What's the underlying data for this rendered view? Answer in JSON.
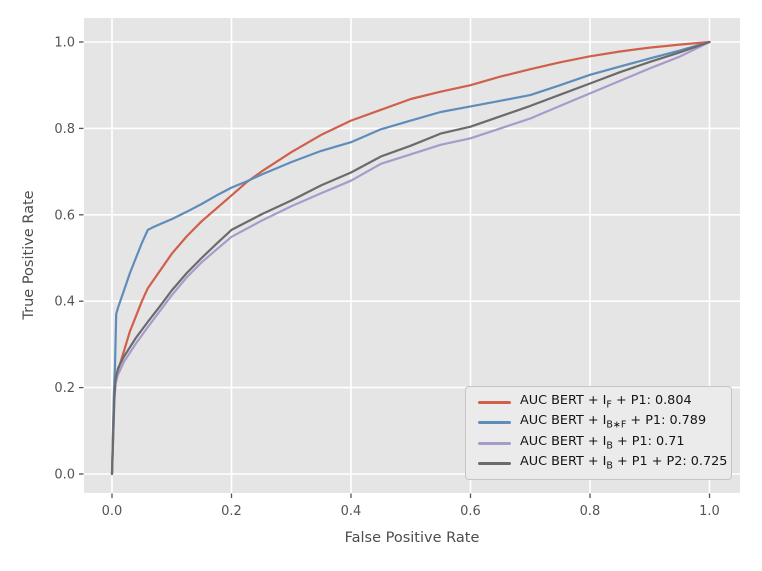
{
  "figure": {
    "background": "#ffffff",
    "plot_background": "#e5e5e5",
    "grid_color": "#ffffff",
    "tick_color": "#555555",
    "tick_label_color": "#555555",
    "axis_label_color": "#4d4d4d",
    "legend_background": "#ebebeb",
    "legend_border": "#c5c5c5"
  },
  "chart_data": {
    "type": "line",
    "title": "",
    "xlabel": "False Positive Rate",
    "ylabel": "True Positive Rate",
    "xlim": [
      -0.047,
      1.051
    ],
    "ylim": [
      -0.044,
      1.056
    ],
    "xticks": [
      0.0,
      0.2,
      0.4,
      0.6,
      0.8,
      1.0
    ],
    "yticks": [
      0.0,
      0.2,
      0.4,
      0.6,
      0.8,
      1.0
    ],
    "xtick_labels": [
      "0.0",
      "0.2",
      "0.4",
      "0.6",
      "0.8",
      "1.0"
    ],
    "ytick_labels": [
      "0.0",
      "0.2",
      "0.4",
      "0.6",
      "0.8",
      "1.0"
    ],
    "grid": true,
    "legend_position": "lower right",
    "series": [
      {
        "name": "BERT + IF + P1",
        "auc": 0.804,
        "color": "#d05f4c",
        "label_parts": [
          {
            "text": "AUC BERT + I"
          },
          {
            "sub": "F"
          },
          {
            "text": " + P1: 0.804"
          }
        ],
        "points": [
          [
            0,
            0
          ],
          [
            0.003,
            0.16
          ],
          [
            0.005,
            0.22
          ],
          [
            0.01,
            0.24
          ],
          [
            0.02,
            0.285
          ],
          [
            0.03,
            0.33
          ],
          [
            0.04,
            0.365
          ],
          [
            0.05,
            0.4
          ],
          [
            0.06,
            0.43
          ],
          [
            0.08,
            0.47
          ],
          [
            0.1,
            0.51
          ],
          [
            0.125,
            0.55
          ],
          [
            0.15,
            0.585
          ],
          [
            0.175,
            0.615
          ],
          [
            0.2,
            0.645
          ],
          [
            0.225,
            0.675
          ],
          [
            0.25,
            0.7
          ],
          [
            0.3,
            0.745
          ],
          [
            0.35,
            0.785
          ],
          [
            0.4,
            0.818
          ],
          [
            0.45,
            0.843
          ],
          [
            0.5,
            0.868
          ],
          [
            0.55,
            0.885
          ],
          [
            0.6,
            0.9
          ],
          [
            0.65,
            0.92
          ],
          [
            0.7,
            0.937
          ],
          [
            0.75,
            0.953
          ],
          [
            0.8,
            0.967
          ],
          [
            0.85,
            0.978
          ],
          [
            0.9,
            0.987
          ],
          [
            0.95,
            0.994
          ],
          [
            1,
            1
          ]
        ]
      },
      {
        "name": "BERT + IB*F + P1",
        "auc": 0.789,
        "color": "#5f8db9",
        "label_parts": [
          {
            "text": "AUC BERT + I"
          },
          {
            "sub": "B∗F"
          },
          {
            "text": " + P1: 0.789"
          }
        ],
        "points": [
          [
            0,
            0
          ],
          [
            0.003,
            0.18
          ],
          [
            0.005,
            0.25
          ],
          [
            0.007,
            0.37
          ],
          [
            0.01,
            0.385
          ],
          [
            0.02,
            0.425
          ],
          [
            0.03,
            0.465
          ],
          [
            0.04,
            0.5
          ],
          [
            0.05,
            0.535
          ],
          [
            0.06,
            0.565
          ],
          [
            0.07,
            0.572
          ],
          [
            0.08,
            0.578
          ],
          [
            0.1,
            0.59
          ],
          [
            0.125,
            0.607
          ],
          [
            0.15,
            0.625
          ],
          [
            0.175,
            0.645
          ],
          [
            0.2,
            0.663
          ],
          [
            0.225,
            0.677
          ],
          [
            0.25,
            0.693
          ],
          [
            0.3,
            0.722
          ],
          [
            0.35,
            0.748
          ],
          [
            0.4,
            0.768
          ],
          [
            0.45,
            0.798
          ],
          [
            0.5,
            0.818
          ],
          [
            0.55,
            0.838
          ],
          [
            0.6,
            0.851
          ],
          [
            0.65,
            0.864
          ],
          [
            0.7,
            0.877
          ],
          [
            0.75,
            0.9
          ],
          [
            0.8,
            0.924
          ],
          [
            0.85,
            0.943
          ],
          [
            0.9,
            0.962
          ],
          [
            0.95,
            0.98
          ],
          [
            1,
            1
          ]
        ]
      },
      {
        "name": "BERT + IB + P1",
        "auc": 0.71,
        "color": "#a89aca",
        "label_parts": [
          {
            "text": "AUC BERT + I"
          },
          {
            "sub": "B"
          },
          {
            "text": " + P1: 0.71"
          }
        ],
        "points": [
          [
            0,
            0
          ],
          [
            0.004,
            0.17
          ],
          [
            0.006,
            0.21
          ],
          [
            0.01,
            0.23
          ],
          [
            0.02,
            0.26
          ],
          [
            0.04,
            0.302
          ],
          [
            0.06,
            0.34
          ],
          [
            0.08,
            0.377
          ],
          [
            0.1,
            0.414
          ],
          [
            0.125,
            0.455
          ],
          [
            0.15,
            0.49
          ],
          [
            0.175,
            0.52
          ],
          [
            0.2,
            0.549
          ],
          [
            0.25,
            0.586
          ],
          [
            0.3,
            0.62
          ],
          [
            0.35,
            0.65
          ],
          [
            0.4,
            0.679
          ],
          [
            0.45,
            0.718
          ],
          [
            0.5,
            0.74
          ],
          [
            0.55,
            0.762
          ],
          [
            0.6,
            0.777
          ],
          [
            0.65,
            0.8
          ],
          [
            0.7,
            0.823
          ],
          [
            0.75,
            0.852
          ],
          [
            0.8,
            0.881
          ],
          [
            0.85,
            0.91
          ],
          [
            0.9,
            0.939
          ],
          [
            0.95,
            0.966
          ],
          [
            1,
            1
          ]
        ]
      },
      {
        "name": "BERT + IB + P1 + P2",
        "auc": 0.725,
        "color": "#6b6b6b",
        "label_parts": [
          {
            "text": "AUC BERT + I"
          },
          {
            "sub": "B"
          },
          {
            "text": " + P1 + P2: 0.725"
          }
        ],
        "points": [
          [
            0,
            0
          ],
          [
            0.004,
            0.18
          ],
          [
            0.006,
            0.22
          ],
          [
            0.01,
            0.245
          ],
          [
            0.02,
            0.272
          ],
          [
            0.04,
            0.315
          ],
          [
            0.06,
            0.352
          ],
          [
            0.08,
            0.388
          ],
          [
            0.1,
            0.425
          ],
          [
            0.125,
            0.465
          ],
          [
            0.15,
            0.5
          ],
          [
            0.175,
            0.533
          ],
          [
            0.2,
            0.565
          ],
          [
            0.25,
            0.601
          ],
          [
            0.3,
            0.633
          ],
          [
            0.35,
            0.668
          ],
          [
            0.4,
            0.698
          ],
          [
            0.45,
            0.735
          ],
          [
            0.5,
            0.76
          ],
          [
            0.55,
            0.788
          ],
          [
            0.6,
            0.804
          ],
          [
            0.65,
            0.828
          ],
          [
            0.7,
            0.852
          ],
          [
            0.75,
            0.878
          ],
          [
            0.8,
            0.904
          ],
          [
            0.85,
            0.93
          ],
          [
            0.9,
            0.954
          ],
          [
            0.95,
            0.976
          ],
          [
            1,
            1
          ]
        ]
      }
    ]
  }
}
